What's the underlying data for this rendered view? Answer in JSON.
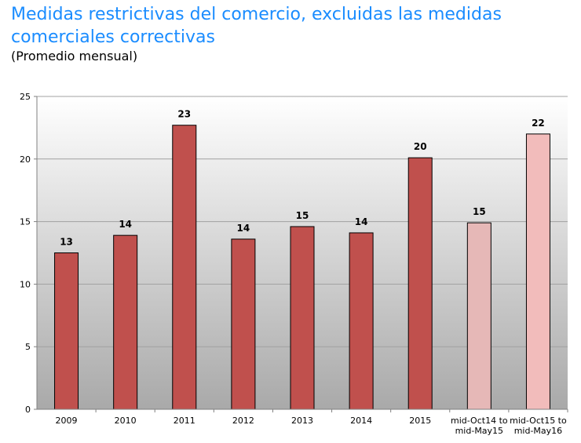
{
  "title": "Medidas restrictivas del comercio, excluidas las medidas comerciales correctivas",
  "subtitle": "(Promedio mensual)",
  "colors": {
    "bar_main": "#c0504d",
    "bar_light1": "#e6b8b7",
    "bar_light2": "#f2bcbb",
    "title": "#1a8cff"
  },
  "chart_data": {
    "type": "bar",
    "title": "Medidas restrictivas del comercio, excluidas las medidas comerciales correctivas",
    "subtitle": "(Promedio mensual)",
    "xlabel": "",
    "ylabel": "",
    "ylim": [
      0,
      25
    ],
    "yticks": [
      0,
      5,
      10,
      15,
      20,
      25
    ],
    "grid": true,
    "categories": [
      "2009",
      "2010",
      "2011",
      "2012",
      "2013",
      "2014",
      "2015",
      "mid-Oct14 to mid-May15",
      "mid-Oct15 to mid-May16"
    ],
    "category_lines": [
      [
        "2009"
      ],
      [
        "2010"
      ],
      [
        "2011"
      ],
      [
        "2012"
      ],
      [
        "2013"
      ],
      [
        "2014"
      ],
      [
        "2015"
      ],
      [
        "mid-Oct14 to",
        "mid-May15"
      ],
      [
        "mid-Oct15 to",
        "mid-May16"
      ]
    ],
    "values": [
      12.5,
      13.9,
      22.7,
      13.6,
      14.6,
      14.1,
      20.1,
      14.9,
      22.0
    ],
    "data_labels": [
      "13",
      "14",
      "23",
      "14",
      "15",
      "14",
      "20",
      "15",
      "22"
    ],
    "bar_colors": [
      "#c0504d",
      "#c0504d",
      "#c0504d",
      "#c0504d",
      "#c0504d",
      "#c0504d",
      "#c0504d",
      "#e6b8b7",
      "#f2bcbb"
    ]
  }
}
